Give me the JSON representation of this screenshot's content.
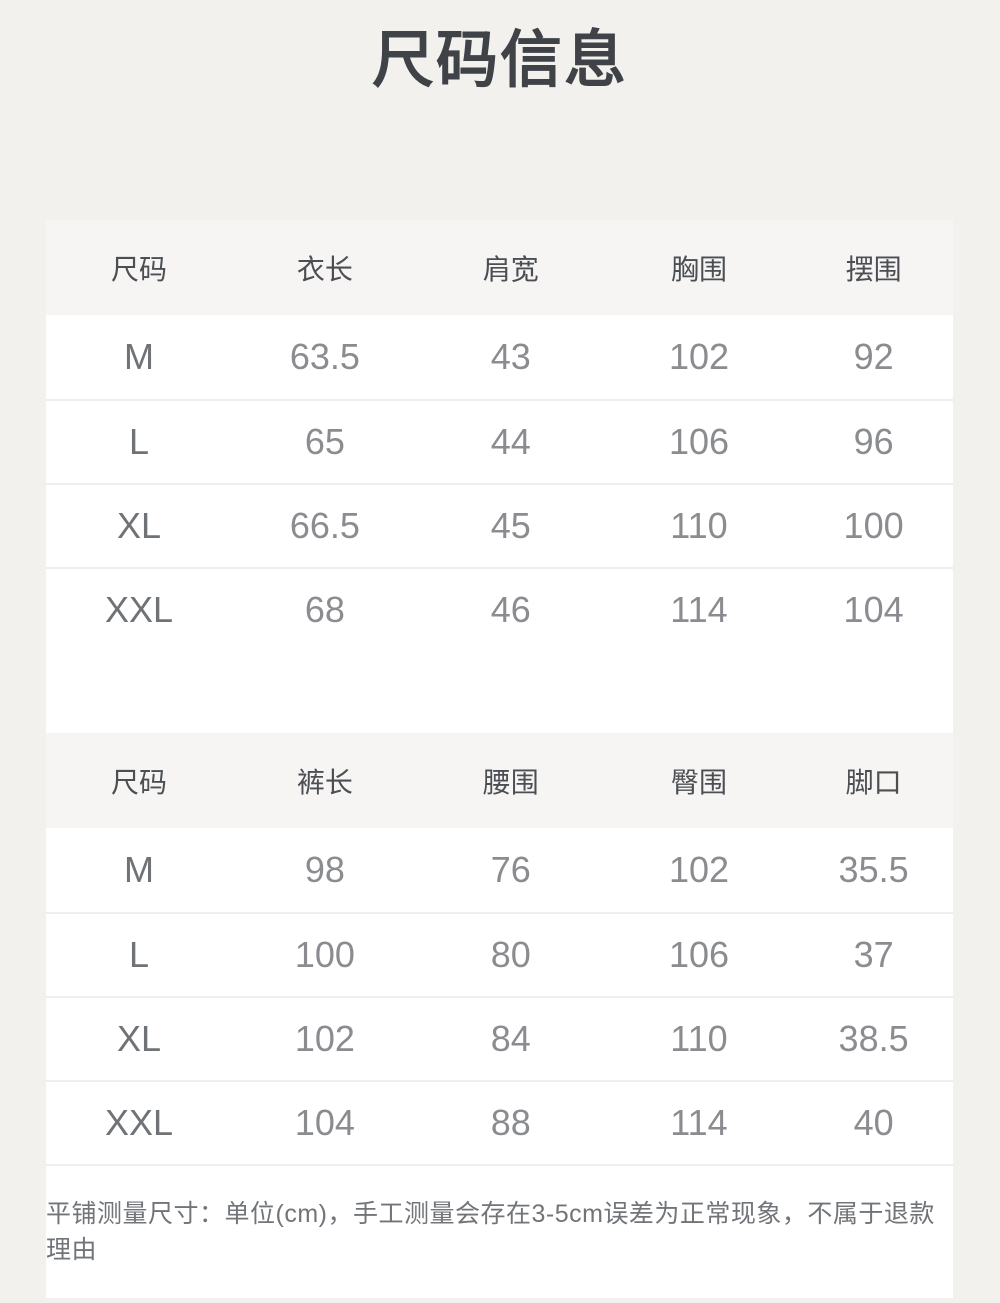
{
  "page": {
    "title": "尺码信息",
    "note": "平铺测量尺寸：单位(cm)，手工测量会存在3-5cm误差为正常现象，不属于退款理由"
  },
  "tables": [
    {
      "name": "top-garment",
      "headers": [
        "尺码",
        "衣长",
        "肩宽",
        "胸围",
        "摆围"
      ],
      "rows": [
        [
          "M",
          "63.5",
          "43",
          "102",
          "92"
        ],
        [
          "L",
          "65",
          "44",
          "106",
          "96"
        ],
        [
          "XL",
          "66.5",
          "45",
          "110",
          "100"
        ],
        [
          "XXL",
          "68",
          "46",
          "114",
          "104"
        ]
      ]
    },
    {
      "name": "pants",
      "headers": [
        "尺码",
        "裤长",
        "腰围",
        "臀围",
        "脚口"
      ],
      "rows": [
        [
          "M",
          "98",
          "76",
          "102",
          "35.5"
        ],
        [
          "L",
          "100",
          "80",
          "106",
          "37"
        ],
        [
          "XL",
          "102",
          "84",
          "110",
          "38.5"
        ],
        [
          "XXL",
          "104",
          "88",
          "114",
          "40"
        ]
      ]
    }
  ]
}
